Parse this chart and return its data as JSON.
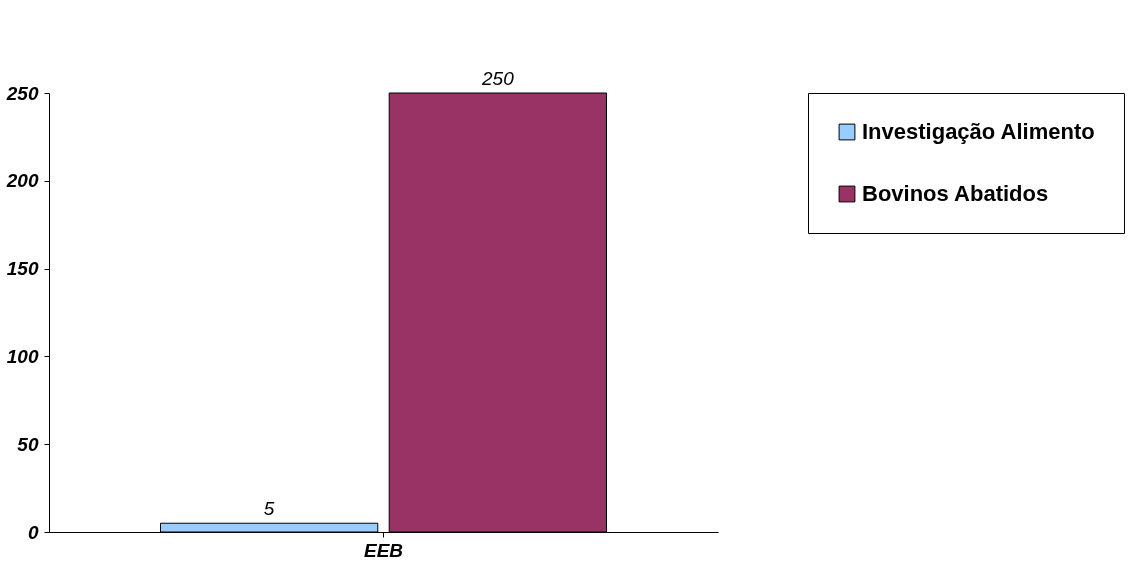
{
  "chart_data": {
    "type": "bar",
    "categories": [
      "EEB"
    ],
    "series": [
      {
        "name": "Investigação Alimento",
        "color": "#99ccff",
        "values": [
          5
        ]
      },
      {
        "name": "Bovinos Abatidos",
        "color": "#993366",
        "values": [
          250
        ]
      }
    ],
    "ylim": [
      0,
      250
    ],
    "yticks": [
      0,
      50,
      100,
      150,
      200,
      250
    ],
    "grid": false,
    "legend": "right",
    "data_labels": true
  }
}
